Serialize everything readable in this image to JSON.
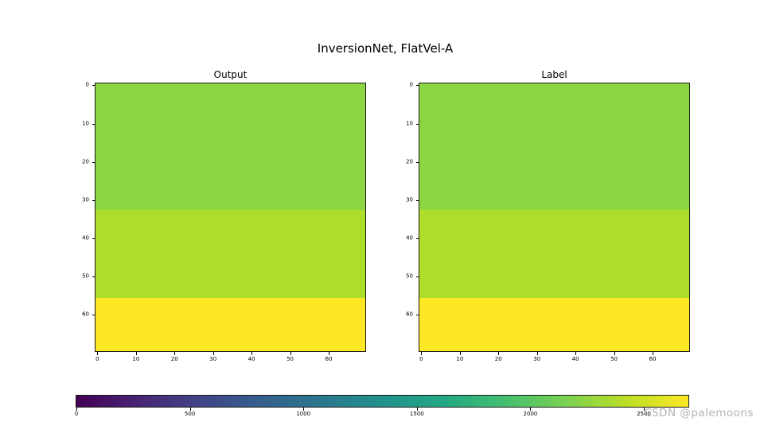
{
  "figure": {
    "title": "InversionNet, FlatVel-A",
    "background": "#ffffff"
  },
  "watermark": {
    "text": "CSDN @palemoons",
    "color": "#b3b3b3"
  },
  "colorbar": {
    "colormap": "viridis",
    "vmin": 0,
    "vmax": 2696,
    "ticks": [
      0,
      500,
      1000,
      1500,
      2000,
      2500
    ],
    "gradient": [
      "#440154",
      "#482475",
      "#414487",
      "#355f8d",
      "#2a788e",
      "#21918c",
      "#22a884",
      "#44bf70",
      "#7ad151",
      "#bddf26",
      "#fde725"
    ]
  },
  "chart_data": [
    {
      "type": "heatmap",
      "title": "Output",
      "colormap": "viridis",
      "grid_size": [
        70,
        70
      ],
      "x_ticks": [
        0,
        10,
        20,
        30,
        40,
        50,
        60
      ],
      "y_ticks": [
        0,
        10,
        20,
        30,
        40,
        50,
        60
      ],
      "layers": [
        {
          "row_start": 0,
          "row_end": 32,
          "approx_velocity": 2300,
          "color": "#8cd644"
        },
        {
          "row_start": 33,
          "row_end": 55,
          "approx_velocity": 2480,
          "color": "#aedd2b"
        },
        {
          "row_start": 56,
          "row_end": 69,
          "approx_velocity": 2690,
          "color": "#fce825"
        }
      ]
    },
    {
      "type": "heatmap",
      "title": "Label",
      "colormap": "viridis",
      "grid_size": [
        70,
        70
      ],
      "x_ticks": [
        0,
        10,
        20,
        30,
        40,
        50,
        60
      ],
      "y_ticks": [
        0,
        10,
        20,
        30,
        40,
        50,
        60
      ],
      "layers": [
        {
          "row_start": 0,
          "row_end": 32,
          "approx_velocity": 2300,
          "color": "#8cd644"
        },
        {
          "row_start": 33,
          "row_end": 55,
          "approx_velocity": 2480,
          "color": "#aedd2b"
        },
        {
          "row_start": 56,
          "row_end": 69,
          "approx_velocity": 2690,
          "color": "#fce825"
        }
      ]
    }
  ]
}
